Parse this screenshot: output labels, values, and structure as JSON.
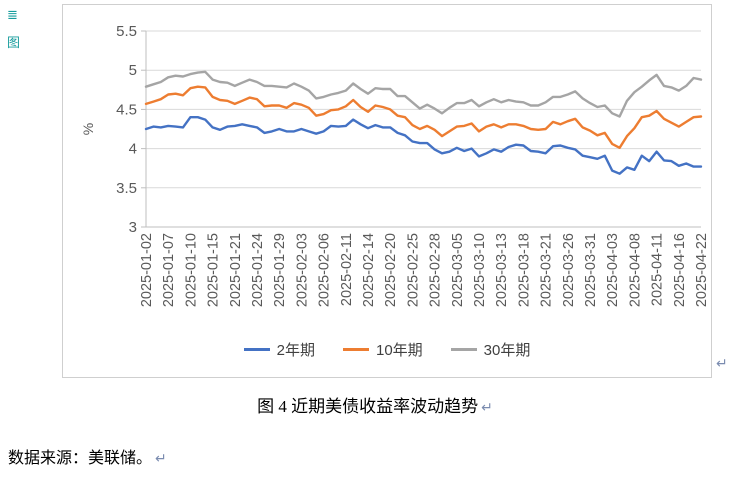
{
  "annotations": {
    "margin_icon_1": "≣",
    "margin_icon_2": "图",
    "paragraph_mark": "↵"
  },
  "caption": "图 4 近期美债收益率波动趋势",
  "source_note": "数据来源：美联储。",
  "chart_data": {
    "type": "line",
    "title": "",
    "xlabel": "",
    "ylabel": "%",
    "ylim": [
      3,
      5.5
    ],
    "yticks": [
      5.5,
      5,
      4.5,
      4,
      3.5,
      3
    ],
    "grid": "horizontal",
    "legend_position": "bottom",
    "x_label_interval": 3,
    "axis_color": "#bfbfbf",
    "grid_color": "#d9d9d9",
    "tick_label_color": "#595959",
    "x": [
      "2025-01-02",
      "2025-01-03",
      "2025-01-06",
      "2025-01-07",
      "2025-01-08",
      "2025-01-09",
      "2025-01-10",
      "2025-01-13",
      "2025-01-14",
      "2025-01-15",
      "2025-01-16",
      "2025-01-17",
      "2025-01-21",
      "2025-01-22",
      "2025-01-23",
      "2025-01-24",
      "2025-01-27",
      "2025-01-28",
      "2025-01-29",
      "2025-01-30",
      "2025-01-31",
      "2025-02-03",
      "2025-02-04",
      "2025-02-05",
      "2025-02-06",
      "2025-02-07",
      "2025-02-10",
      "2025-02-11",
      "2025-02-12",
      "2025-02-13",
      "2025-02-14",
      "2025-02-18",
      "2025-02-19",
      "2025-02-20",
      "2025-02-21",
      "2025-02-24",
      "2025-02-25",
      "2025-02-26",
      "2025-02-27",
      "2025-02-28",
      "2025-03-03",
      "2025-03-04",
      "2025-03-05",
      "2025-03-06",
      "2025-03-07",
      "2025-03-10",
      "2025-03-11",
      "2025-03-12",
      "2025-03-13",
      "2025-03-14",
      "2025-03-17",
      "2025-03-18",
      "2025-03-19",
      "2025-03-20",
      "2025-03-21",
      "2025-03-24",
      "2025-03-25",
      "2025-03-26",
      "2025-03-27",
      "2025-03-28",
      "2025-03-31",
      "2025-04-01",
      "2025-04-02",
      "2025-04-03",
      "2025-04-04",
      "2025-04-07",
      "2025-04-08",
      "2025-04-09",
      "2025-04-10",
      "2025-04-11",
      "2025-04-14",
      "2025-04-15",
      "2025-04-16",
      "2025-04-17",
      "2025-04-21",
      "2025-04-22"
    ],
    "series": [
      {
        "name": "2年期",
        "color": "#4472C4",
        "values": [
          4.25,
          4.28,
          4.27,
          4.29,
          4.28,
          4.27,
          4.4,
          4.4,
          4.37,
          4.27,
          4.24,
          4.28,
          4.29,
          4.31,
          4.29,
          4.27,
          4.2,
          4.22,
          4.25,
          4.22,
          4.22,
          4.25,
          4.22,
          4.19,
          4.22,
          4.29,
          4.28,
          4.29,
          4.37,
          4.31,
          4.26,
          4.3,
          4.27,
          4.27,
          4.2,
          4.17,
          4.09,
          4.07,
          4.07,
          3.99,
          3.94,
          3.96,
          4.01,
          3.97,
          4.0,
          3.9,
          3.94,
          3.99,
          3.96,
          4.02,
          4.05,
          4.04,
          3.97,
          3.96,
          3.94,
          4.03,
          4.04,
          4.01,
          3.99,
          3.91,
          3.89,
          3.87,
          3.91,
          3.72,
          3.68,
          3.76,
          3.73,
          3.91,
          3.84,
          3.96,
          3.85,
          3.84,
          3.78,
          3.81,
          3.77,
          3.77
        ]
      },
      {
        "name": "10年期",
        "color": "#ED7D31",
        "values": [
          4.57,
          4.6,
          4.63,
          4.69,
          4.7,
          4.68,
          4.77,
          4.79,
          4.78,
          4.66,
          4.62,
          4.61,
          4.57,
          4.61,
          4.65,
          4.63,
          4.54,
          4.55,
          4.55,
          4.52,
          4.58,
          4.56,
          4.52,
          4.42,
          4.44,
          4.49,
          4.5,
          4.54,
          4.62,
          4.53,
          4.47,
          4.55,
          4.53,
          4.5,
          4.42,
          4.4,
          4.3,
          4.25,
          4.29,
          4.24,
          4.16,
          4.22,
          4.28,
          4.29,
          4.32,
          4.22,
          4.28,
          4.31,
          4.27,
          4.31,
          4.31,
          4.29,
          4.25,
          4.24,
          4.25,
          4.34,
          4.31,
          4.35,
          4.38,
          4.27,
          4.23,
          4.17,
          4.2,
          4.06,
          4.01,
          4.16,
          4.26,
          4.4,
          4.42,
          4.48,
          4.38,
          4.33,
          4.28,
          4.34,
          4.4,
          4.41
        ]
      },
      {
        "name": "30年期",
        "color": "#A5A5A5",
        "values": [
          4.79,
          4.82,
          4.85,
          4.91,
          4.93,
          4.92,
          4.95,
          4.97,
          4.98,
          4.88,
          4.85,
          4.84,
          4.8,
          4.84,
          4.88,
          4.85,
          4.8,
          4.8,
          4.79,
          4.78,
          4.83,
          4.79,
          4.74,
          4.64,
          4.66,
          4.69,
          4.71,
          4.74,
          4.83,
          4.76,
          4.7,
          4.77,
          4.76,
          4.76,
          4.67,
          4.67,
          4.59,
          4.51,
          4.56,
          4.51,
          4.45,
          4.52,
          4.58,
          4.58,
          4.62,
          4.54,
          4.59,
          4.63,
          4.59,
          4.62,
          4.6,
          4.59,
          4.55,
          4.55,
          4.59,
          4.66,
          4.66,
          4.69,
          4.73,
          4.64,
          4.58,
          4.53,
          4.55,
          4.45,
          4.41,
          4.61,
          4.72,
          4.79,
          4.87,
          4.94,
          4.8,
          4.78,
          4.74,
          4.8,
          4.9,
          4.88
        ]
      }
    ]
  }
}
